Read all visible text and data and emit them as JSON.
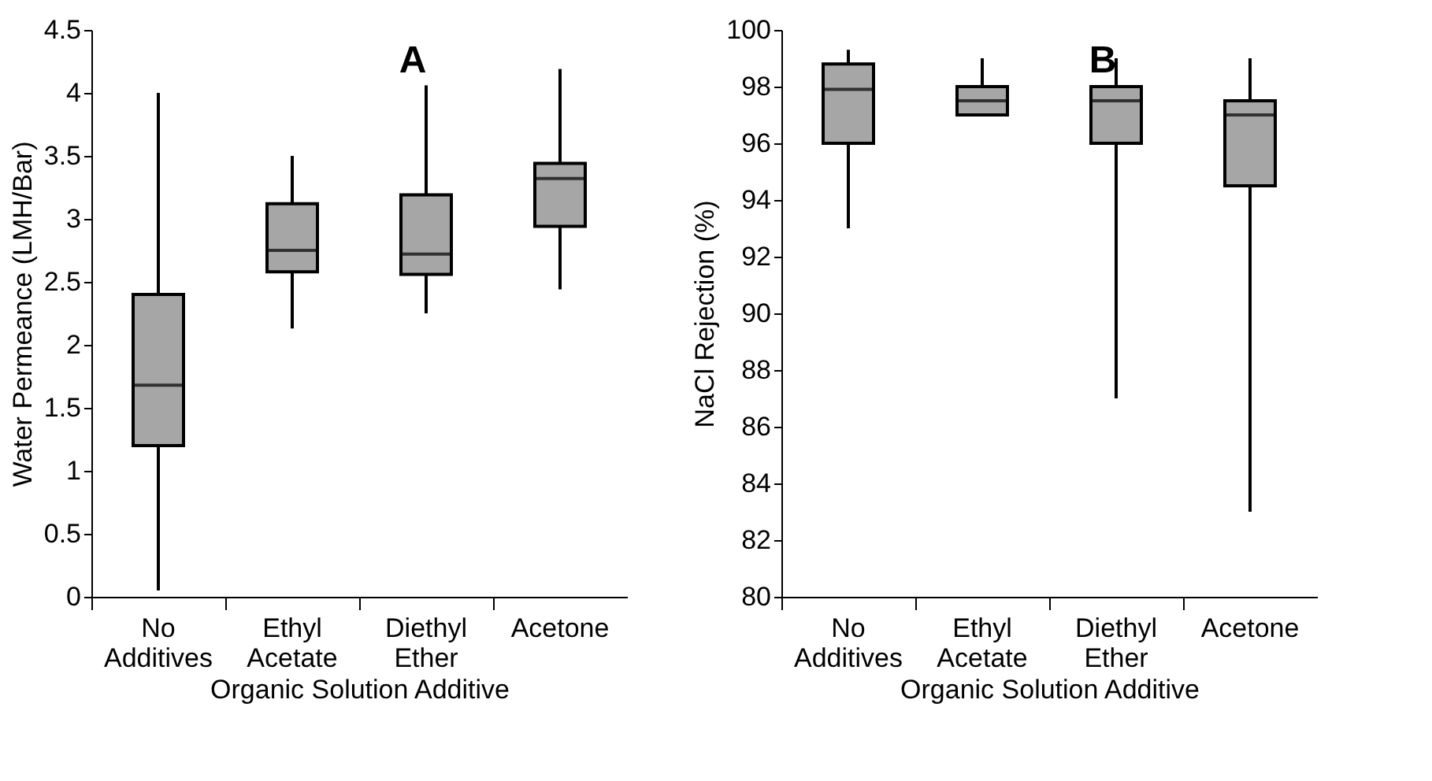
{
  "chart_data": [
    {
      "type": "box",
      "annotations": [
        "A"
      ],
      "xlabel": "Organic Solution Additive",
      "ylabel": "Water Permeance (LMH/Bar)",
      "categories": [
        "No Additives",
        "Ethyl Acetate",
        "Diethyl Ether",
        "Acetone"
      ],
      "ylim": [
        0,
        4.5
      ],
      "yticks": [
        0,
        0.5,
        1,
        1.5,
        2,
        2.5,
        3,
        3.5,
        4,
        4.5
      ],
      "grid": false,
      "legend": false,
      "series": [
        {
          "color": "#a6a6a6",
          "boxes": [
            {
              "low": 0.05,
              "q1": 1.2,
              "median": 1.68,
              "q3": 2.4,
              "high": 4.0
            },
            {
              "low": 2.13,
              "q1": 2.58,
              "median": 2.75,
              "q3": 3.12,
              "high": 3.5
            },
            {
              "low": 2.25,
              "q1": 2.56,
              "median": 2.72,
              "q3": 3.19,
              "high": 4.06
            },
            {
              "low": 2.44,
              "q1": 2.94,
              "median": 3.32,
              "q3": 3.44,
              "high": 4.19
            }
          ]
        }
      ]
    },
    {
      "type": "box",
      "annotations": [
        "B"
      ],
      "xlabel": "Organic Solution Additive",
      "ylabel": "NaCl Rejection (%)",
      "categories": [
        "No Additives",
        "Ethyl Acetate",
        "Diethyl Ether",
        "Acetone"
      ],
      "ylim": [
        80,
        100
      ],
      "yticks": [
        80,
        82,
        84,
        86,
        88,
        90,
        92,
        94,
        96,
        98,
        100
      ],
      "grid": false,
      "legend": false,
      "series": [
        {
          "color": "#a6a6a6",
          "boxes": [
            {
              "low": 93.0,
              "q1": 96.0,
              "median": 97.9,
              "q3": 98.8,
              "high": 99.3
            },
            {
              "low": 97.0,
              "q1": 97.0,
              "median": 97.5,
              "q3": 98.0,
              "high": 99.0
            },
            {
              "low": 87.0,
              "q1": 96.0,
              "median": 97.5,
              "q3": 98.0,
              "high": 99.0
            },
            {
              "low": 83.0,
              "q1": 94.5,
              "median": 97.0,
              "q3": 97.5,
              "high": 99.0
            }
          ]
        }
      ]
    }
  ]
}
